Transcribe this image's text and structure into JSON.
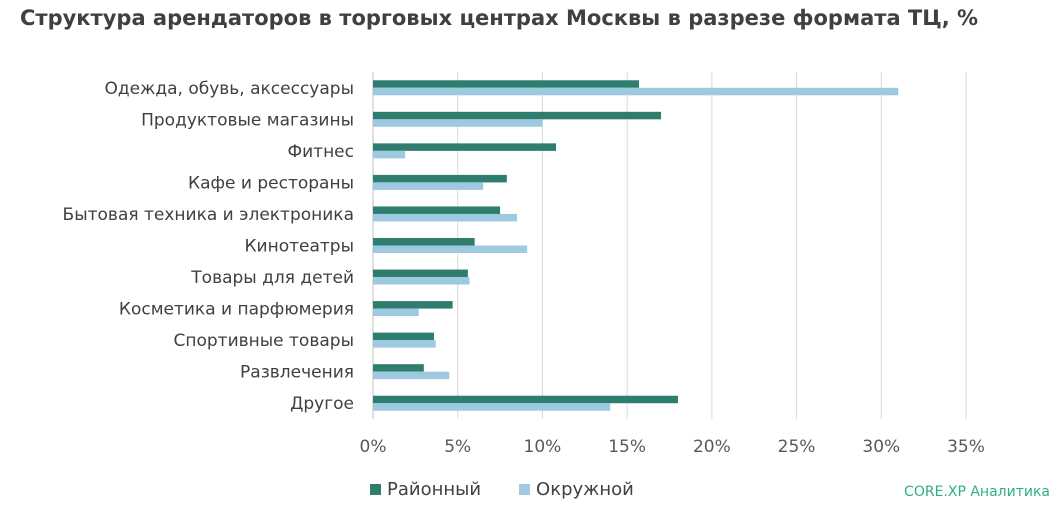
{
  "chart_data": {
    "type": "bar",
    "orientation": "horizontal",
    "title": "Структура арендаторов в торговых центрах Москвы в разрезе формата ТЦ, %",
    "categories": [
      "Одежда, обувь, аксессуары",
      "Продуктовые магазины",
      "Фитнес",
      "Кафе и рестораны",
      "Бытовая техника и электроника",
      "Кинотеатры",
      "Товары для детей",
      "Косметика и парфюмерия",
      "Спортивные товары",
      "Развлечения",
      "Другое"
    ],
    "series": [
      {
        "name": "Районный",
        "color": "#2e7d6e",
        "values": [
          15.7,
          17.0,
          10.8,
          7.9,
          7.5,
          6.0,
          5.6,
          4.7,
          3.6,
          3.0,
          18.0
        ]
      },
      {
        "name": "Окружной",
        "color": "#9ecae1",
        "values": [
          31.0,
          10.0,
          1.9,
          6.5,
          8.5,
          9.1,
          5.7,
          2.7,
          3.7,
          4.5,
          14.0
        ]
      }
    ],
    "xlim": [
      0,
      35
    ],
    "xticks": [
      "0%",
      "5%",
      "10%",
      "15%",
      "20%",
      "25%",
      "30%",
      "35%"
    ],
    "grid": true,
    "legend_position": "bottom"
  },
  "source": "CORE.XP Аналитика"
}
